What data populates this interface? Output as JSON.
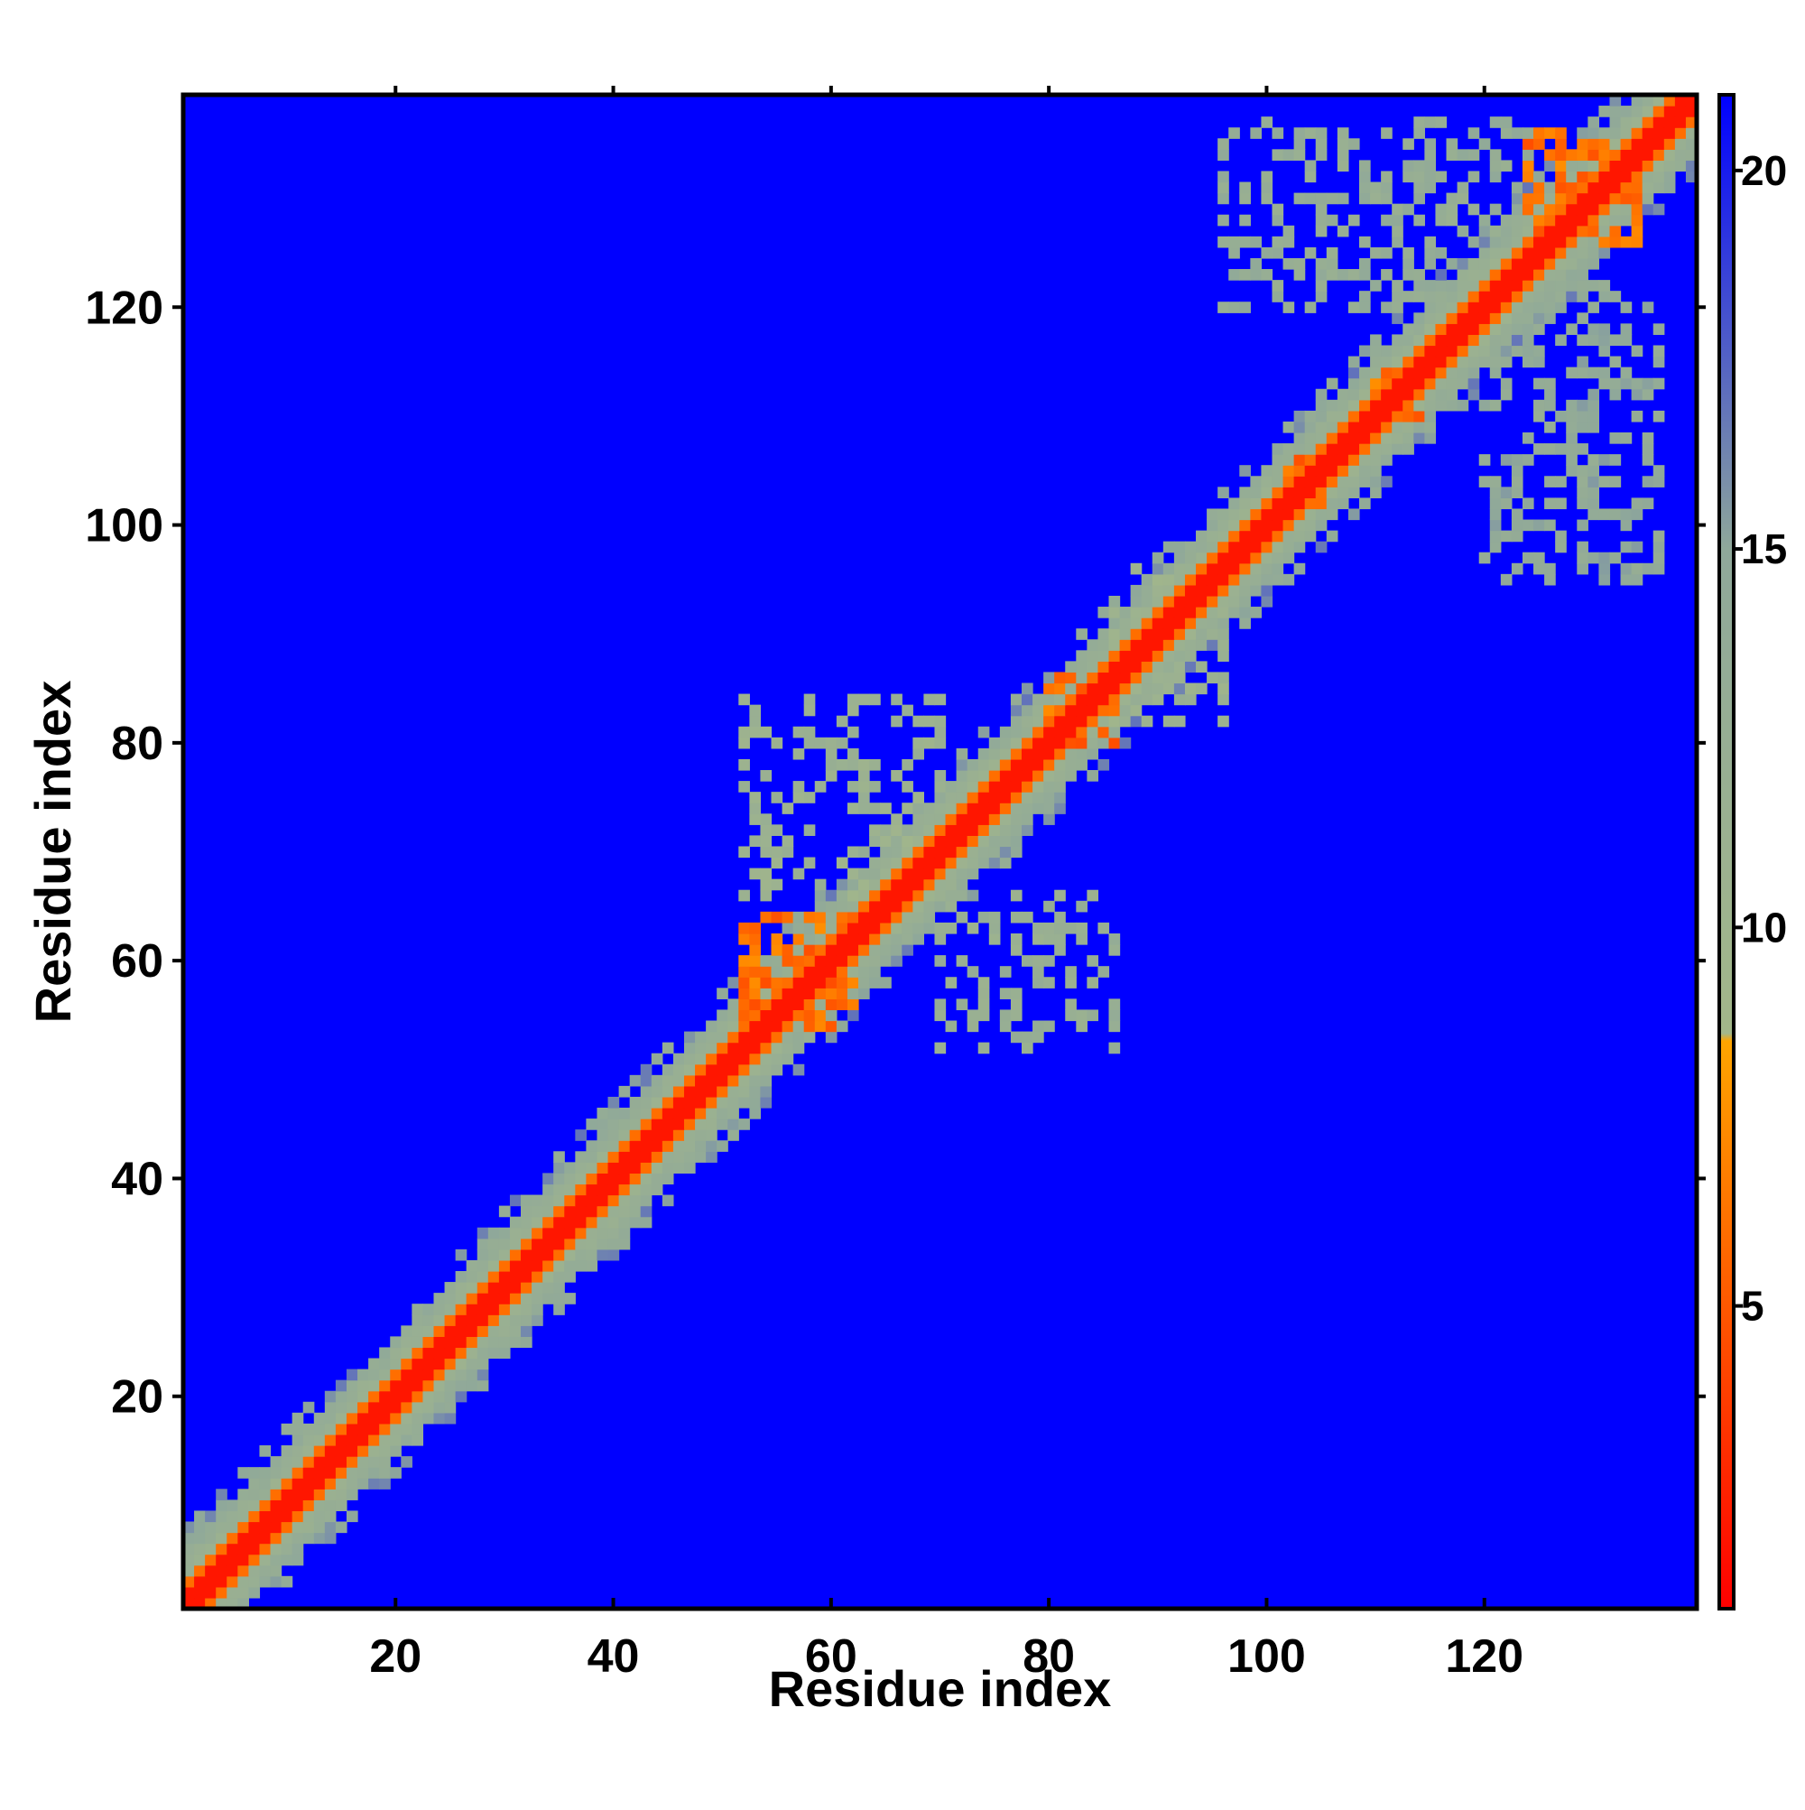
{
  "chart_data": {
    "type": "heatmap",
    "title": "",
    "xlabel": "Residue index",
    "ylabel": "Residue index",
    "xlim": [
      1,
      139
    ],
    "ylim": [
      1,
      139
    ],
    "x_ticks": [
      20,
      40,
      60,
      80,
      100,
      120
    ],
    "y_ticks": [
      20,
      40,
      60,
      80,
      100,
      120
    ],
    "colorbar": {
      "range": [
        1,
        21
      ],
      "ticks": [
        5,
        10,
        15,
        20
      ],
      "stops": [
        {
          "value": 1,
          "color": "#ff0000"
        },
        {
          "value": 8.5,
          "color": "#ffa500"
        },
        {
          "value": 8.6,
          "color": "#a3b78a"
        },
        {
          "value": 15,
          "color": "#8fa89a"
        },
        {
          "value": 21,
          "color": "#0000ff"
        }
      ]
    },
    "background_value": 21,
    "diagonal_band": {
      "red_halfwidth": 1.5,
      "orange_halfwidth": 2.5,
      "green_halfwidth": 5.5
    },
    "contact_clusters": [
      {
        "x_range": [
          52,
          62
        ],
        "y_range": [
          54,
          64
        ],
        "value": 6
      },
      {
        "x_range": [
          80,
          86
        ],
        "y_range": [
          80,
          86
        ],
        "value": 6
      },
      {
        "x_range": [
          102,
          106
        ],
        "y_range": [
          102,
          106
        ],
        "value": 6
      },
      {
        "x_range": [
          110,
          114
        ],
        "y_range": [
          110,
          114
        ],
        "value": 6
      },
      {
        "x_range": [
          124,
          134
        ],
        "y_range": [
          126,
          136
        ],
        "value": 6
      },
      {
        "x_range": [
          52,
          70
        ],
        "y_range": [
          66,
          84
        ],
        "value": 11
      },
      {
        "x_range": [
          70,
          86
        ],
        "y_range": [
          52,
          66
        ],
        "value": 12
      },
      {
        "x_range": [
          96,
          124
        ],
        "y_range": [
          120,
          137
        ],
        "value": 13
      },
      {
        "x_range": [
          120,
          136
        ],
        "y_range": [
          95,
          122
        ],
        "value": 14
      },
      {
        "x_range": [
          86,
          96
        ],
        "y_range": [
          82,
          96
        ],
        "value": 11
      }
    ]
  }
}
